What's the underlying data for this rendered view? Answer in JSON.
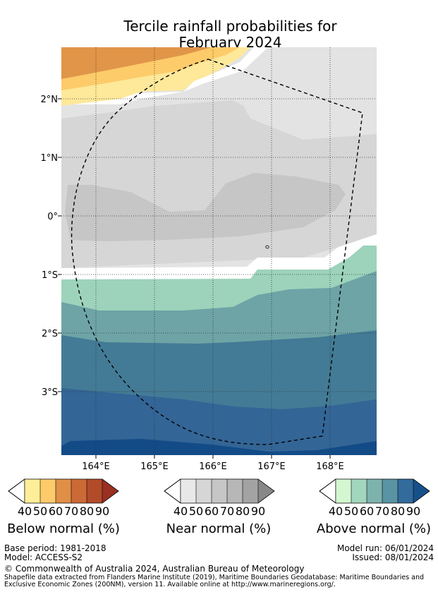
{
  "title": {
    "line1": "Tercile rainfall probabilities for",
    "line2": "February 2024"
  },
  "map": {
    "lat_labels": [
      "2°N",
      "1°N",
      "0°",
      "1°S",
      "2°S",
      "3°S"
    ],
    "lon_labels": [
      "164°E",
      "165°E",
      "166°E",
      "167°E",
      "168°E"
    ],
    "colors": {
      "near_light": "#e3e3e3",
      "near_mid": "#d6d6d6",
      "near_dark": "#c6c6c6",
      "below_40": "#fee89a",
      "below_50": "#fdcb6a",
      "below_60": "#e09548",
      "above_40": "#9dd3bb",
      "above_50": "#6ea4a6",
      "above_60": "#437b96",
      "above_70": "#336596",
      "above_80": "#134b87"
    }
  },
  "colorbars": [
    {
      "label": "Below normal (%)",
      "ticks": [
        "40",
        "50",
        "60",
        "70",
        "80",
        "90"
      ],
      "colors": [
        "#ffee99",
        "#fdcb6a",
        "#e08f47",
        "#cc6a37",
        "#b14b2a",
        "#9a3022"
      ]
    },
    {
      "label": "Near normal (%)",
      "ticks": [
        "40",
        "50",
        "60",
        "70",
        "80",
        "90"
      ],
      "colors": [
        "#e8e8e8",
        "#d6d6d6",
        "#c6c6c6",
        "#b7b7b7",
        "#a3a3a3",
        "#888888"
      ]
    },
    {
      "label": "Above normal (%)",
      "ticks": [
        "40",
        "50",
        "60",
        "70",
        "80",
        "90"
      ],
      "colors": [
        "#d4f7d2",
        "#a3d6be",
        "#7db2ad",
        "#5a93a4",
        "#336b9c",
        "#16508b"
      ]
    }
  ],
  "footer": {
    "base_period": "Base period: 1981-2018",
    "model": "Model: ACCESS-S2",
    "model_run": "Model run: 06/01/2024",
    "issued": "Issued: 08/01/2024",
    "copyright": "© Commonwealth of Australia 2024, Australian Bureau of Meteorology",
    "shapefile_line1": "Shapefile data extracted from Flanders Marine Institute (2019), Maritime Boundaries Geodatabase: Maritime Boundaries and",
    "shapefile_line2": "Exclusive Economic Zones (200NM), version 11. Available online at http://www.marineregions.org/."
  }
}
